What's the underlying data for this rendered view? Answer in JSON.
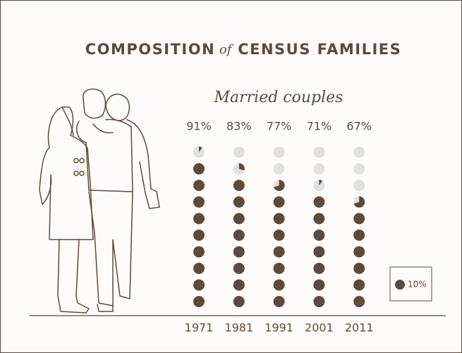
{
  "chart_data": {
    "type": "dot",
    "title": "COMPOSITION of CENSUS FAMILIES",
    "subtitle": "Married couples",
    "categories": [
      "1971",
      "1981",
      "1991",
      "2001",
      "2011"
    ],
    "values": [
      91,
      83,
      77,
      71,
      67
    ],
    "value_labels": [
      "91%",
      "83%",
      "77%",
      "71%",
      "67%"
    ],
    "dot_value": 10,
    "dot_value_label": "10%",
    "ylim": [
      0,
      100
    ],
    "color": "#5e4a3a",
    "empty_color": "#e2e0de"
  }
}
